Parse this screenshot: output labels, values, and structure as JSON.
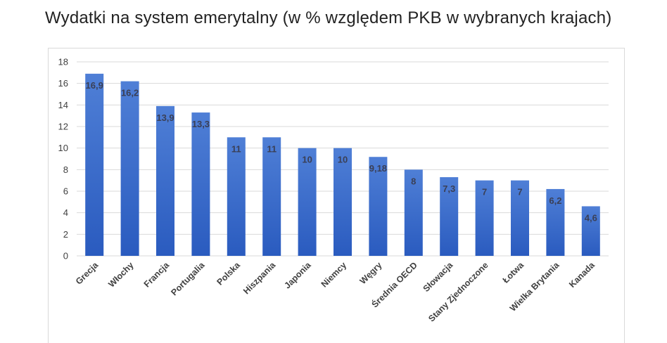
{
  "title": "Wydatki na system emerytalny (w % względem PKB w wybranych krajach)",
  "chart_data": {
    "type": "bar",
    "title": "Wydatki na system emerytalny (w % względem PKB w wybranych krajach)",
    "xlabel": "",
    "ylabel": "",
    "ylim": [
      0,
      18
    ],
    "yticks": [
      "0",
      "2",
      "4",
      "6",
      "8",
      "10",
      "12",
      "14",
      "16",
      "18"
    ],
    "grid": true,
    "categories": [
      "Grecja",
      "Włochy",
      "Francja",
      "Portugalia",
      "Polska",
      "Hiszpania",
      "Japonia",
      "Niemcy",
      "Węgry",
      "Średnia OECD",
      "Słowacja",
      "Stany Zjednoczone",
      "Łotwa",
      "Wielka Brytania",
      "Kanada"
    ],
    "values": [
      16.9,
      16.2,
      13.9,
      13.3,
      11,
      11,
      10,
      10,
      9.18,
      8,
      7.3,
      7,
      7,
      6.2,
      4.6
    ],
    "data_labels": [
      "16,9",
      "16,2",
      "13,9",
      "13,3",
      "11",
      "11",
      "10",
      "10",
      "9,18",
      "8",
      "7,3",
      "7",
      "7",
      "6,2",
      "4,6"
    ],
    "colors": {
      "bar_top": "#4f7fd6",
      "bar_bottom": "#2a5bbf",
      "grid": "#d9d9d9"
    }
  }
}
